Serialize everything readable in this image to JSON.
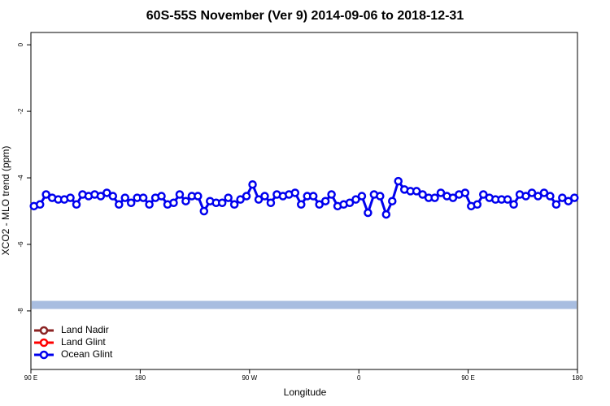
{
  "chart_data": {
    "type": "line",
    "title": "60S-55S November (Ver 9)   2014-09-06 to 2018-12-31",
    "xlabel": "Longitude",
    "ylabel": "XCO2 - MLO trend (ppm)",
    "xlim": [
      90,
      540
    ],
    "ylim": [
      -9.76,
      0.37
    ],
    "xticks": [
      {
        "value": 90,
        "label": "90 E"
      },
      180,
      {
        "value": 270,
        "label": "90 W"
      },
      {
        "value": 360,
        "label": "0"
      },
      {
        "value": 450,
        "label": "90 E"
      },
      {
        "value": 540,
        "label": "180"
      }
    ],
    "yticks": [
      0,
      -2,
      -4,
      -6,
      -8
    ],
    "reference_band": {
      "value": -7.82,
      "color": "#a8bde0"
    },
    "x": [
      92.5,
      97.5,
      102.5,
      107.5,
      112.5,
      117.5,
      122.5,
      127.5,
      132.5,
      137.5,
      142.5,
      147.5,
      152.5,
      157.5,
      162.5,
      167.5,
      172.5,
      177.5,
      182.5,
      187.5,
      192.5,
      197.5,
      202.5,
      207.5,
      212.5,
      217.5,
      222.5,
      227.5,
      232.5,
      237.5,
      242.5,
      247.5,
      252.5,
      257.5,
      262.5,
      267.5,
      272.5,
      277.5,
      282.5,
      287.5,
      292.5,
      297.5,
      302.5,
      307.5,
      312.5,
      317.5,
      322.5,
      327.5,
      332.5,
      337.5,
      342.5,
      347.5,
      352.5,
      357.5,
      362.5,
      367.5,
      372.5,
      377.5,
      382.5,
      387.5,
      392.5,
      397.5,
      402.5,
      407.5,
      412.5,
      417.5,
      422.5,
      427.5,
      432.5,
      437.5,
      442.5,
      447.5,
      452.5,
      457.5,
      462.5,
      467.5,
      472.5,
      477.5,
      482.5,
      487.5,
      492.5,
      497.5,
      502.5,
      507.5,
      512.5,
      517.5,
      522.5,
      527.5,
      532.5,
      537.5
    ],
    "legend": "bottom-left",
    "series": [
      {
        "name": "Land Nadir",
        "color": "#8b2323",
        "values": [
          null,
          null,
          null,
          null,
          null,
          null,
          null,
          null,
          null,
          null,
          null,
          null,
          null,
          null,
          null,
          null,
          null,
          null,
          null,
          null,
          null,
          null,
          null,
          null,
          null,
          null,
          null,
          null,
          null,
          null,
          null,
          null,
          null,
          null,
          null,
          null,
          null,
          null,
          null,
          null,
          null,
          null,
          null,
          null,
          null,
          null,
          null,
          null,
          null,
          null,
          null,
          null,
          null,
          null,
          null,
          null,
          null,
          null,
          null,
          null,
          null,
          null,
          null,
          null,
          null,
          null,
          null,
          null,
          null,
          null,
          null,
          null,
          null,
          null,
          null,
          null,
          null,
          null,
          null,
          null,
          null,
          null,
          null,
          null,
          null,
          null,
          null,
          null,
          null,
          null
        ]
      },
      {
        "name": "Land Glint",
        "color": "#ff0000",
        "values": [
          null,
          null,
          null,
          null,
          null,
          null,
          null,
          null,
          null,
          null,
          null,
          null,
          null,
          null,
          null,
          null,
          null,
          null,
          null,
          null,
          null,
          null,
          null,
          null,
          null,
          null,
          null,
          null,
          null,
          null,
          null,
          null,
          null,
          null,
          null,
          null,
          null,
          null,
          null,
          null,
          null,
          null,
          null,
          null,
          null,
          null,
          null,
          null,
          null,
          null,
          null,
          null,
          null,
          null,
          null,
          null,
          null,
          null,
          null,
          null,
          null,
          null,
          null,
          null,
          null,
          null,
          null,
          null,
          null,
          null,
          null,
          null,
          null,
          null,
          null,
          null,
          null,
          null,
          null,
          null,
          null,
          null,
          null,
          null,
          null,
          null,
          null,
          null,
          null,
          null
        ]
      },
      {
        "name": "Ocean Glint",
        "color": "#0000ee",
        "values": [
          -4.85,
          -4.8,
          -4.5,
          -4.6,
          -4.65,
          -4.65,
          -4.6,
          -4.8,
          -4.5,
          -4.55,
          -4.5,
          -4.55,
          -4.45,
          -4.55,
          -4.8,
          -4.6,
          -4.75,
          -4.6,
          -4.6,
          -4.8,
          -4.6,
          -4.55,
          -4.8,
          -4.75,
          -4.5,
          -4.7,
          -4.55,
          -4.55,
          -5.0,
          -4.7,
          -4.75,
          -4.75,
          -4.6,
          -4.8,
          -4.65,
          -4.55,
          -4.2,
          -4.65,
          -4.55,
          -4.75,
          -4.5,
          -4.55,
          -4.5,
          -4.45,
          -4.8,
          -4.55,
          -4.55,
          -4.8,
          -4.7,
          -4.5,
          -4.85,
          -4.8,
          -4.75,
          -4.65,
          -4.55,
          -5.05,
          -4.5,
          -4.55,
          -5.1,
          -4.7,
          -4.1,
          -4.35,
          -4.4,
          -4.4,
          -4.5,
          -4.6,
          -4.6,
          -4.45,
          -4.55,
          -4.6,
          -4.5,
          -4.45,
          -4.85,
          -4.8,
          -4.5,
          -4.6,
          -4.65,
          -4.65,
          -4.65,
          -4.8,
          -4.5,
          -4.55,
          -4.45,
          -4.55,
          -4.45,
          -4.55,
          -4.8,
          -4.6,
          -4.7,
          -4.6
        ]
      }
    ]
  }
}
